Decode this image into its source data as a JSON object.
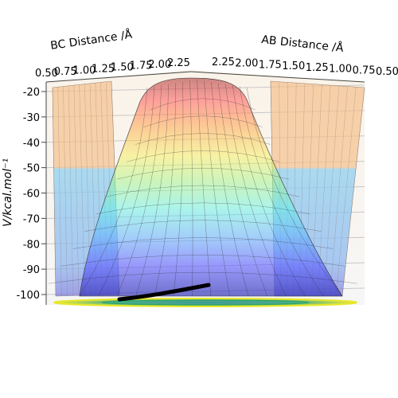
{
  "chart_data": {
    "type": "surface3d",
    "title": "",
    "xlabel": "BC Distance /Å",
    "ylabel": "AB Distance /Å",
    "zlabel": "V/kcal.mol⁻¹",
    "x_ticks": [
      "0.50",
      "0.75",
      "1.00",
      "1.25",
      "1.50",
      "1.75",
      "2.00",
      "2.25"
    ],
    "y_ticks": [
      "2.25",
      "2.00",
      "1.75",
      "1.50",
      "1.25",
      "1.00",
      "0.75",
      "0.50"
    ],
    "z_ticks": [
      "-20",
      "-30",
      "-40",
      "-50",
      "-60",
      "-70",
      "-80",
      "-90",
      "-100"
    ],
    "xlim": [
      0.5,
      2.25
    ],
    "ylim": [
      0.5,
      2.25
    ],
    "zlim": [
      -103,
      -18
    ],
    "colormap": "jet",
    "surface_alpha": 0.45,
    "grid": true,
    "contour_projection": "bottom",
    "trajectory_color": "#000000"
  }
}
